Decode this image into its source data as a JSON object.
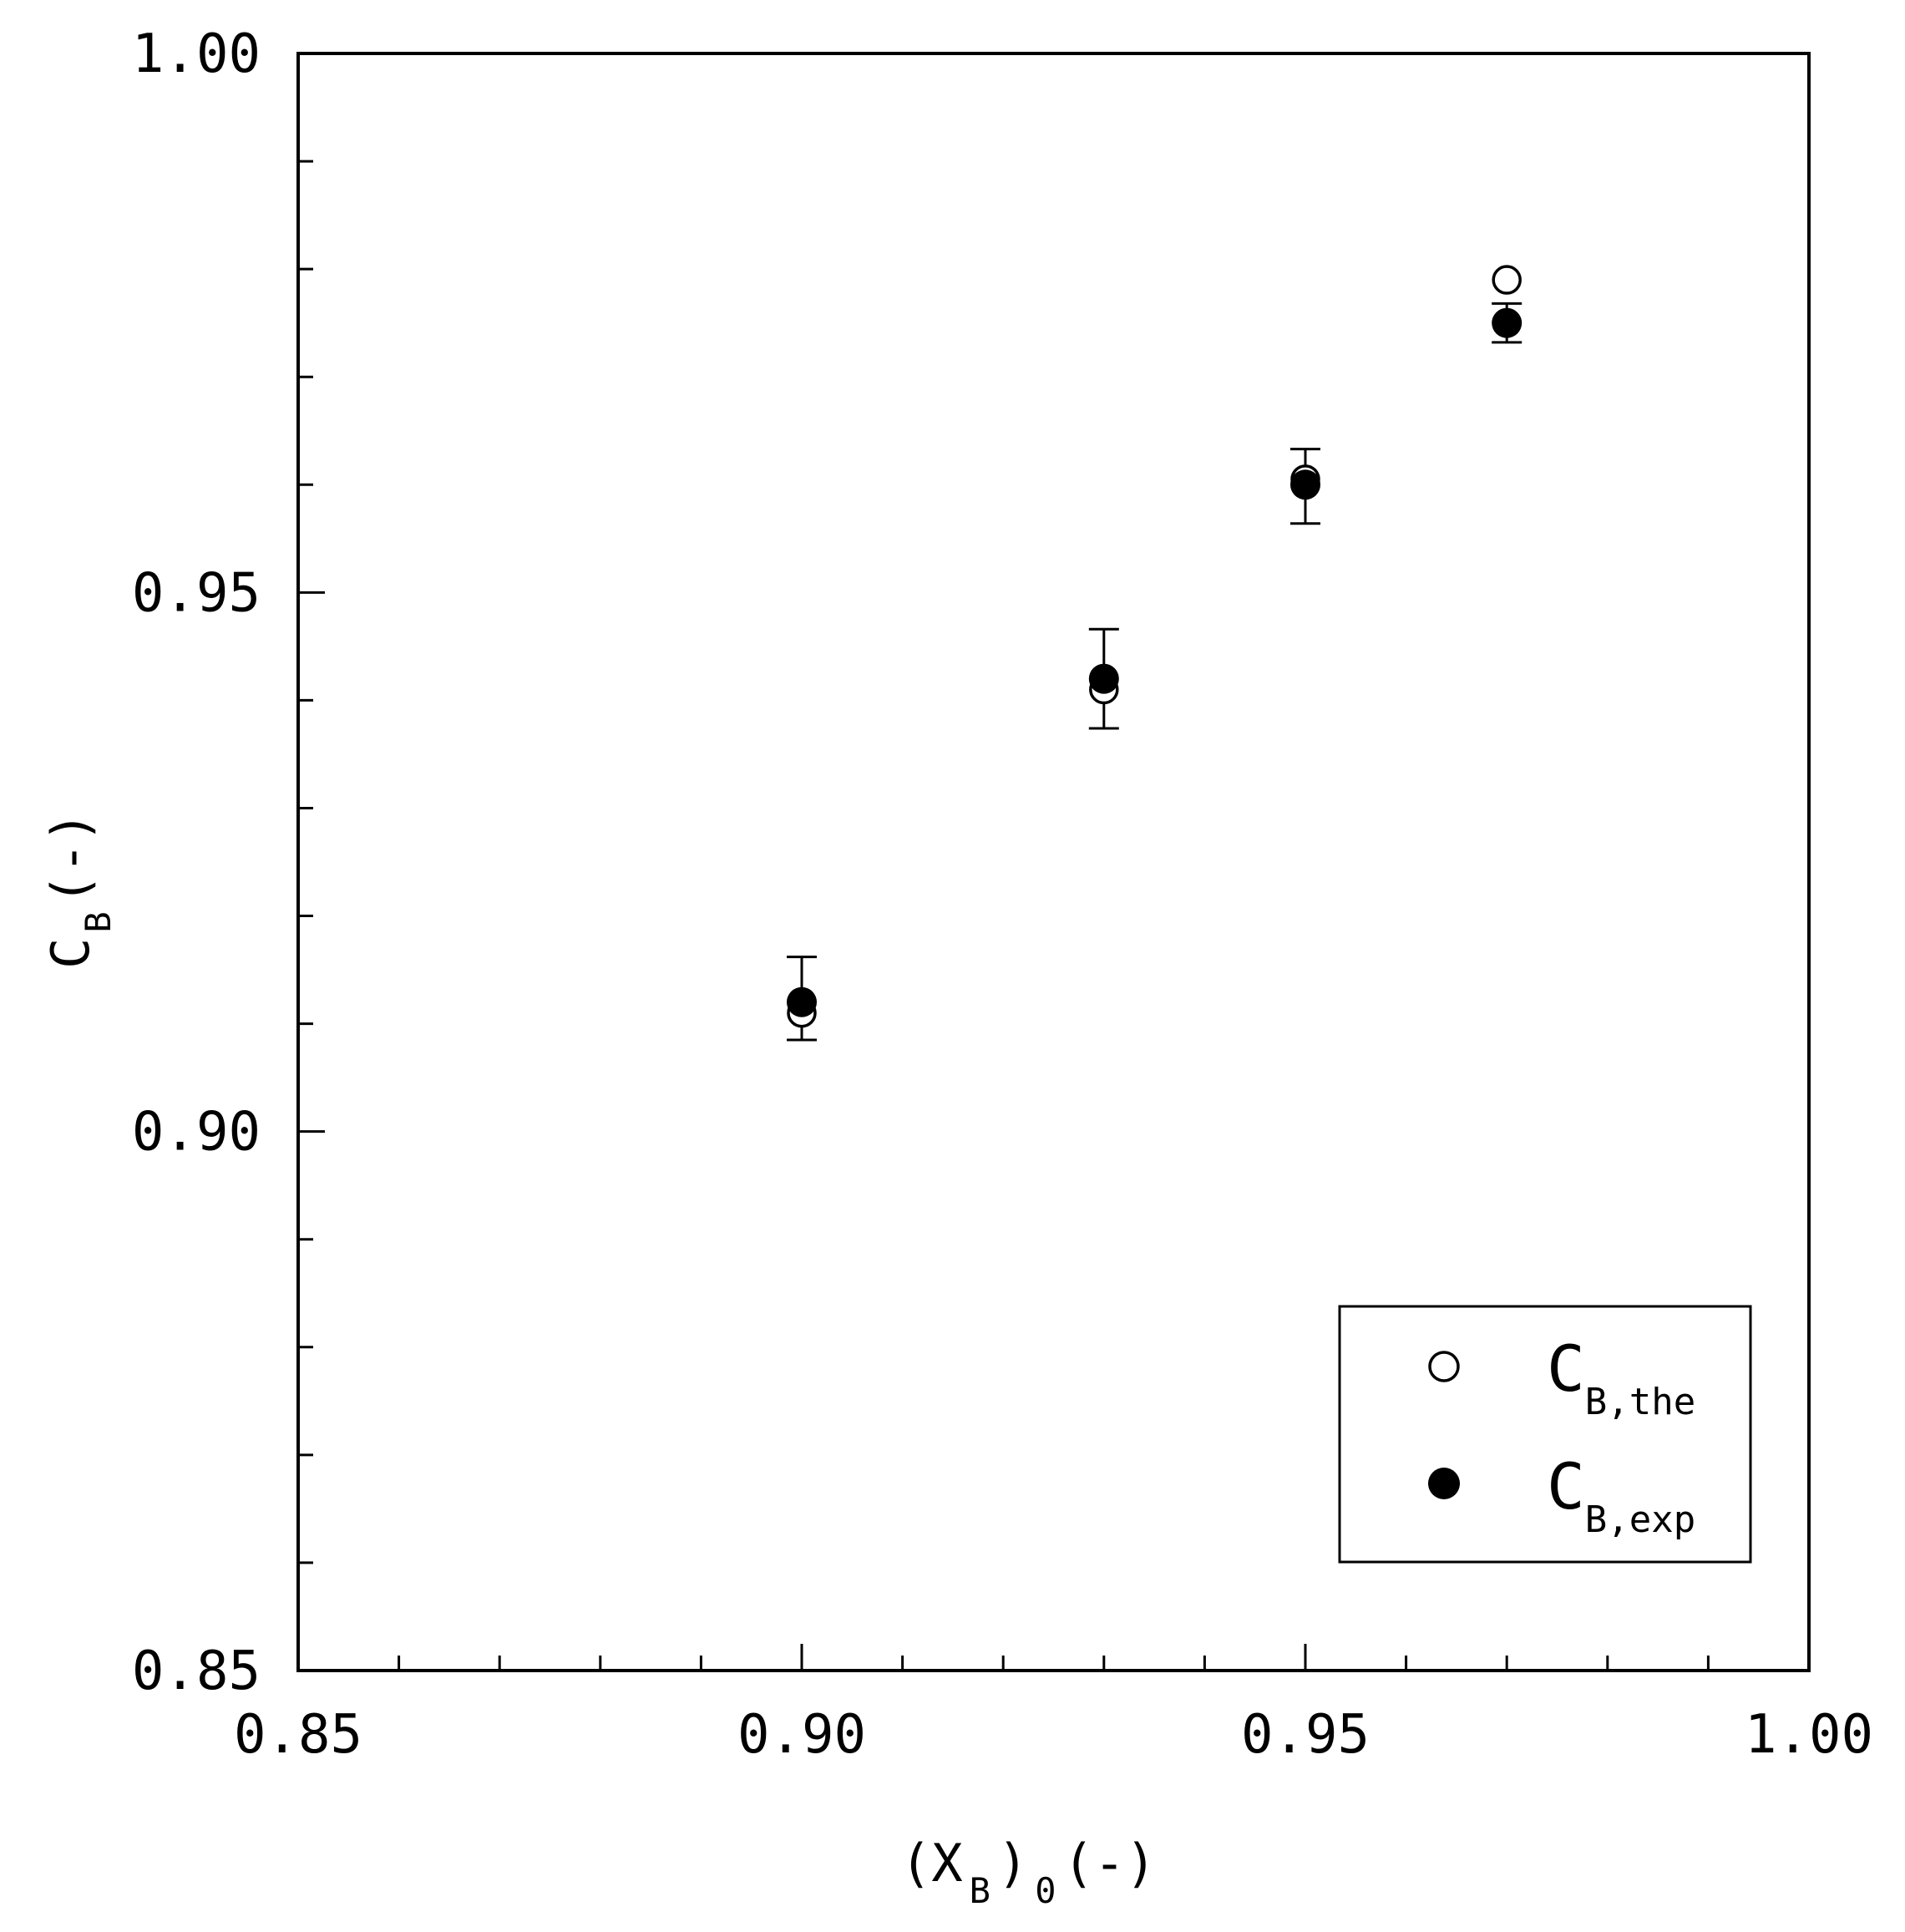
{
  "chart_data": {
    "type": "scatter",
    "title": "",
    "xlim": [
      0.85,
      1.0
    ],
    "ylim": [
      0.85,
      1.0
    ],
    "x_ticks": [
      "0.85",
      "0.90",
      "0.95",
      "1.00"
    ],
    "y_ticks": [
      "0.85",
      "0.90",
      "0.95",
      "1.00"
    ],
    "x_minor_step": 0.01,
    "y_minor_step": 0.01,
    "xlabel": {
      "open": "(X",
      "sub1": "B",
      "mid": ")",
      "sub2": "0",
      "tail": "(-)"
    },
    "ylabel": {
      "main": "C",
      "sub": "B",
      "tail": "(-)"
    },
    "legend_position": "bottom-right",
    "grid": false,
    "series": [
      {
        "name": {
          "main": "C",
          "sub": "B,the"
        },
        "marker": "open-circle",
        "points": [
          {
            "x": 0.9,
            "y": 0.911
          },
          {
            "x": 0.93,
            "y": 0.941
          },
          {
            "x": 0.95,
            "y": 0.9605
          },
          {
            "x": 0.97,
            "y": 0.979
          }
        ]
      },
      {
        "name": {
          "main": "C",
          "sub": "B,exp"
        },
        "marker": "filled-circle",
        "points": [
          {
            "x": 0.9,
            "y": 0.912,
            "err_low": 0.0035,
            "err_high": 0.0042
          },
          {
            "x": 0.93,
            "y": 0.942,
            "err_low": 0.0046,
            "err_high": 0.0046
          },
          {
            "x": 0.95,
            "y": 0.96,
            "err_low": 0.0036,
            "err_high": 0.0033
          },
          {
            "x": 0.97,
            "y": 0.975,
            "err_low": 0.0018,
            "err_high": 0.0018
          }
        ]
      }
    ]
  }
}
